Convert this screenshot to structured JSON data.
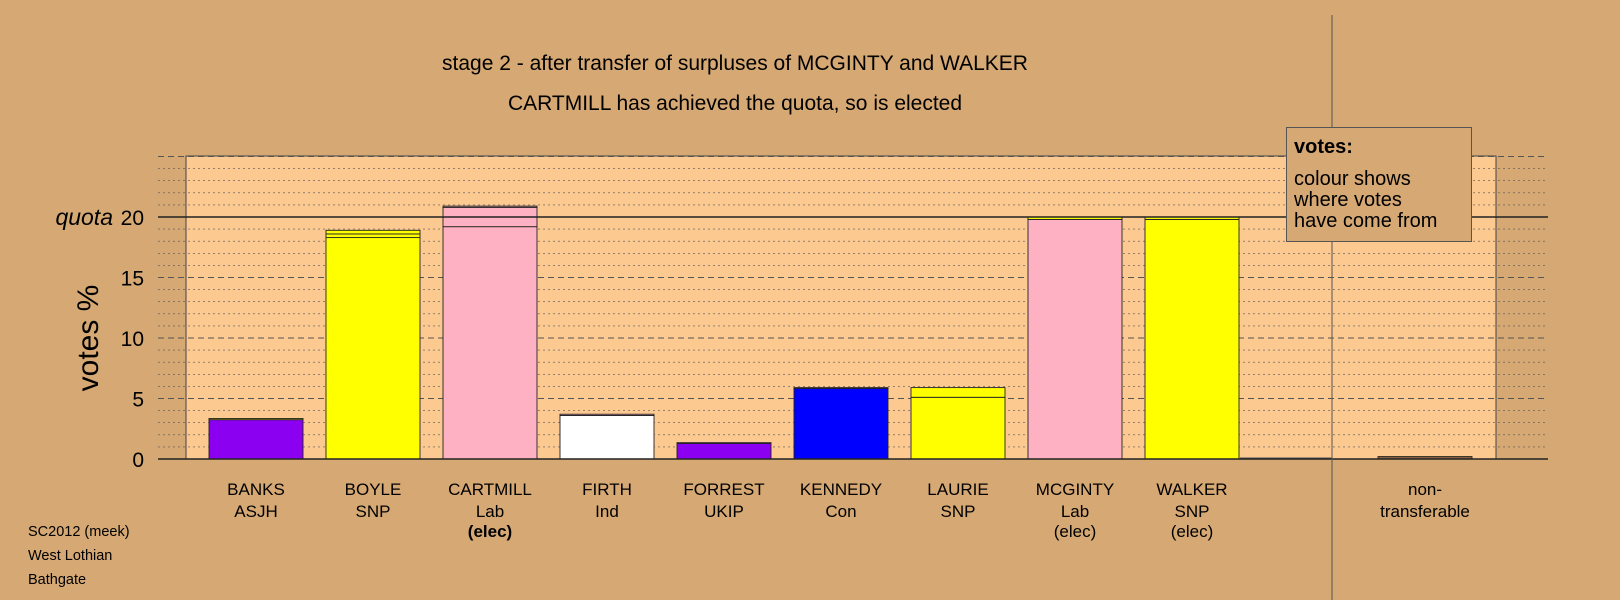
{
  "title_lines": [
    "stage 2 - after transfer of surpluses of MCGINTY and WALKER",
    "CARTMILL has achieved the quota, so is elected"
  ],
  "legend": {
    "title": "votes:",
    "text": "colour shows\nwhere votes\nhave come from"
  },
  "footer": [
    "SC2012 (meek)",
    "West Lothian",
    "Bathgate"
  ],
  "colors": {
    "background": "#d5a874",
    "plot_area": "#fcc991",
    "ASJH": "#8b00f0",
    "SNP": "#ffff00",
    "Lab": "#ffb1c4",
    "Ind": "#ffffff",
    "UKIP": "#8b00f0",
    "Con": "#0000ff",
    "nontransferable": "#8b6440"
  },
  "chart_data": {
    "type": "bar",
    "stacked": true,
    "ylabel": "votes %",
    "quota_label": "quota",
    "quota": 20,
    "yticks": [
      0,
      5,
      10,
      15,
      20
    ],
    "ylim": [
      0,
      25
    ],
    "grid": "dotted minor every 1, dashed major every 5",
    "legend_placement": "top-right",
    "bars": [
      {
        "name": "BANKS",
        "party": "ASJH",
        "elected_label": "",
        "elected_bold": false,
        "segments": [
          {
            "from": "ASJH",
            "value": 3.25
          },
          {
            "from": "SNP",
            "value": 0.1
          }
        ]
      },
      {
        "name": "BOYLE",
        "party": "SNP",
        "elected_label": "",
        "elected_bold": false,
        "segments": [
          {
            "from": "SNP",
            "value": 18.3
          },
          {
            "from": "SNP",
            "value": 0.3
          },
          {
            "from": "SNP",
            "value": 0.3
          }
        ]
      },
      {
        "name": "CARTMILL",
        "party": "Lab",
        "elected_label": "(elec)",
        "elected_bold": true,
        "segments": [
          {
            "from": "Lab",
            "value": 19.2
          },
          {
            "from": "Lab",
            "value": 1.6
          },
          {
            "from": "Lab",
            "value": 0.1
          }
        ]
      },
      {
        "name": "FIRTH",
        "party": "Ind",
        "elected_label": "",
        "elected_bold": false,
        "segments": [
          {
            "from": "Ind",
            "value": 3.6
          },
          {
            "from": "Lab",
            "value": 0.1
          }
        ]
      },
      {
        "name": "FORREST",
        "party": "UKIP",
        "elected_label": "",
        "elected_bold": false,
        "segments": [
          {
            "from": "UKIP",
            "value": 1.3
          },
          {
            "from": "UKIP",
            "value": 0.05
          }
        ]
      },
      {
        "name": "KENNEDY",
        "party": "Con",
        "elected_label": "",
        "elected_bold": false,
        "segments": [
          {
            "from": "Con",
            "value": 5.85
          },
          {
            "from": "Con",
            "value": 0.05
          }
        ]
      },
      {
        "name": "LAURIE",
        "party": "SNP",
        "elected_label": "",
        "elected_bold": false,
        "segments": [
          {
            "from": "SNP",
            "value": 5.1
          },
          {
            "from": "SNP",
            "value": 0.8
          }
        ]
      },
      {
        "name": "MCGINTY",
        "party": "Lab",
        "elected_label": "(elec)",
        "elected_bold": false,
        "segments": [
          {
            "from": "Lab",
            "value": 19.8
          },
          {
            "from": "SNP",
            "value": 0.2
          }
        ]
      },
      {
        "name": "WALKER",
        "party": "SNP",
        "elected_label": "(elec)",
        "elected_bold": false,
        "segments": [
          {
            "from": "SNP",
            "value": 19.8
          },
          {
            "from": "SNP",
            "value": 0.2
          }
        ]
      }
    ],
    "nontransferable": {
      "label_lines": [
        "non-",
        "transferable"
      ],
      "value": 0.2
    }
  }
}
